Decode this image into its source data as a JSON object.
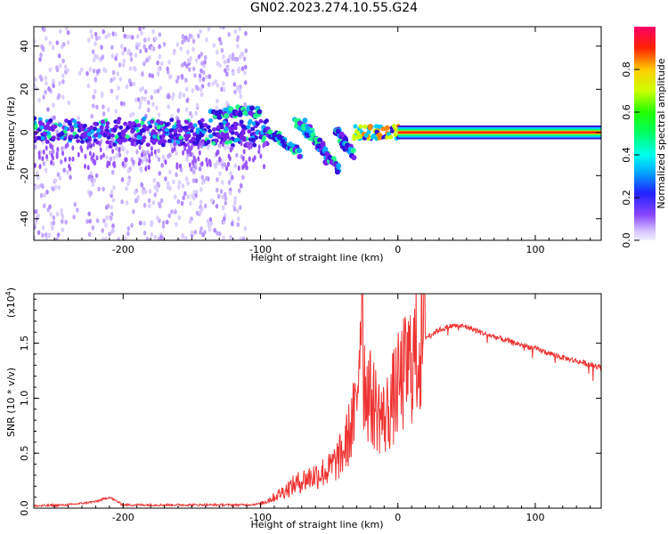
{
  "title": "GN02.2023.274.10.55.G24",
  "chart_data": [
    {
      "type": "heatmap",
      "xlabel": "Height of straight line (km)",
      "ylabel": "Frequency (Hz)",
      "xlim": [
        -265,
        148
      ],
      "ylim": [
        -50,
        49
      ],
      "xticks": [
        -200,
        -100,
        0,
        100
      ],
      "yticks": [
        -40,
        -20,
        0,
        20,
        40
      ],
      "colorbar": {
        "label": "Normalized spectral amplitude",
        "range": [
          0.0,
          1.0
        ],
        "ticks": [
          0.0,
          0.2,
          0.4,
          0.6,
          0.8
        ]
      },
      "features": [
        {
          "name": "low-frequency scatter",
          "x_range": [
            -265,
            -110
          ],
          "y_range": [
            -50,
            49
          ],
          "amplitude": 0.1
        },
        {
          "name": "carrier band",
          "x_range": [
            -265,
            -100
          ],
          "y_center": 0,
          "amplitude": 0.3
        },
        {
          "name": "descending tracks",
          "x_range": [
            -100,
            -30
          ],
          "amplitude": 0.4
        },
        {
          "name": "direct signal",
          "x_range": [
            0,
            148
          ],
          "y_center": 0,
          "amplitude": 0.9
        }
      ],
      "grid": false
    },
    {
      "type": "line",
      "xlabel": "Height of straight line (km)",
      "ylabel": "SNR (10 * v/v)",
      "yscale_label": "(x10",
      "yscale_exp": "4",
      "xlim": [
        -265,
        148
      ],
      "ylim": [
        0,
        1.95
      ],
      "xticks": [
        -200,
        -100,
        0,
        100
      ],
      "yticks": [
        "0.0",
        "0.5",
        "1.0",
        "1.5"
      ],
      "color": "#ee3333",
      "series": [
        {
          "x": [
            -265,
            -240,
            -220,
            -210,
            -200,
            -150,
            -110,
            -100,
            -90,
            -80,
            -70,
            -60,
            -50,
            -40,
            -35,
            -30,
            -27,
            -25,
            -20,
            -15,
            -10,
            -5,
            0,
            10,
            20,
            30,
            40,
            50,
            60,
            80,
            100,
            120,
            148
          ],
          "y": [
            0.02,
            0.03,
            0.06,
            0.1,
            0.03,
            0.03,
            0.03,
            0.04,
            0.1,
            0.18,
            0.25,
            0.3,
            0.35,
            0.5,
            0.7,
            0.9,
            1.9,
            1.2,
            1.0,
            0.9,
            0.8,
            0.95,
            1.1,
            1.35,
            1.55,
            1.62,
            1.66,
            1.65,
            1.6,
            1.52,
            1.45,
            1.37,
            1.28
          ]
        }
      ],
      "grid": false
    }
  ]
}
